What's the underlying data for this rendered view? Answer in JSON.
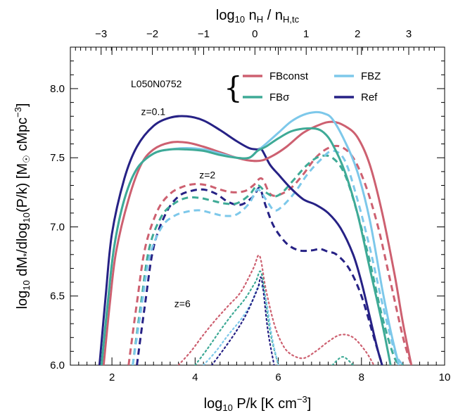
{
  "chart_data": {
    "type": "line",
    "xlabel": "log10 P/k [K cm^-3]",
    "ylabel": "log10 dM*/dlog10(P/k) [M☉ cMpc^-3]",
    "top_xlabel": "log10 nH / nH,tc",
    "xlim": [
      1,
      10
    ],
    "ylim": [
      6.0,
      8.3
    ],
    "top_xlim": [
      -3.6,
      3.7
    ],
    "x_ticks": [
      2,
      4,
      6,
      8,
      10
    ],
    "x_tick_labels": [
      "2",
      "4",
      "6",
      "8",
      "10"
    ],
    "y_ticks": [
      6.0,
      6.5,
      7.0,
      7.5,
      8.0
    ],
    "y_tick_labels": [
      "6.0",
      "6.5",
      "7.0",
      "7.5",
      "8.0"
    ],
    "top_ticks": [
      -3,
      -2,
      -1,
      0,
      1,
      2,
      3
    ],
    "top_tick_labels": [
      "−3",
      "−2",
      "−1",
      "0",
      "1",
      "2",
      "3"
    ],
    "grid": false,
    "annotation_simulation": "L050N0752",
    "annotations": [
      {
        "text": "z=0.1",
        "x": 2.7,
        "y": 7.81
      },
      {
        "text": "z=2",
        "x": 4.1,
        "y": 7.35
      },
      {
        "text": "z=6",
        "x": 3.5,
        "y": 6.42
      }
    ],
    "legend": {
      "placement": "top-right",
      "entries": [
        {
          "name": "FBconst",
          "color": "#CD6070"
        },
        {
          "name": "FBσ",
          "color": "#3EAA96"
        },
        {
          "name": "FBZ",
          "color": "#7DC8EA"
        },
        {
          "name": "Ref",
          "color": "#262185"
        }
      ]
    },
    "series": [
      {
        "name": "Ref",
        "redshift": "z=0.1",
        "color": "#262185",
        "dash": "solid",
        "x": [
          1.7,
          1.85,
          2.0,
          2.3,
          2.6,
          3.0,
          3.4,
          3.8,
          4.2,
          4.6,
          5.0,
          5.3,
          5.5,
          5.6,
          5.8,
          6.0,
          6.3,
          6.6,
          6.9,
          7.2,
          7.5,
          7.8,
          8.0,
          8.2,
          8.4,
          8.6
        ],
        "y": [
          6.0,
          6.5,
          6.95,
          7.35,
          7.58,
          7.73,
          7.79,
          7.8,
          7.77,
          7.7,
          7.62,
          7.57,
          7.56,
          7.56,
          7.45,
          7.38,
          7.28,
          7.2,
          7.16,
          7.1,
          6.99,
          6.8,
          6.6,
          6.35,
          6.1,
          5.9
        ]
      },
      {
        "name": "FBconst",
        "redshift": "z=0.1",
        "color": "#CD6070",
        "dash": "solid",
        "x": [
          1.8,
          1.95,
          2.1,
          2.4,
          2.7,
          3.0,
          3.4,
          3.8,
          4.2,
          4.6,
          5.0,
          5.3,
          5.6,
          5.9,
          6.2,
          6.6,
          7.0,
          7.3,
          7.6,
          7.9,
          8.2,
          8.5,
          8.8,
          9.0,
          9.2
        ],
        "y": [
          6.0,
          6.45,
          6.82,
          7.2,
          7.45,
          7.56,
          7.61,
          7.61,
          7.58,
          7.54,
          7.5,
          7.48,
          7.48,
          7.52,
          7.58,
          7.68,
          7.74,
          7.76,
          7.73,
          7.65,
          7.45,
          7.1,
          6.65,
          6.3,
          6.0
        ]
      },
      {
        "name": "FBZ",
        "redshift": "z=0.1",
        "color": "#7DC8EA",
        "dash": "solid",
        "x": [
          1.75,
          1.9,
          2.05,
          2.3,
          2.6,
          3.0,
          3.4,
          3.8,
          4.2,
          4.6,
          5.0,
          5.3,
          5.5,
          5.7,
          6.0,
          6.3,
          6.6,
          6.9,
          7.1,
          7.3,
          7.6,
          7.9,
          8.2,
          8.5,
          8.7,
          8.9
        ],
        "y": [
          6.0,
          6.45,
          6.85,
          7.2,
          7.42,
          7.53,
          7.56,
          7.57,
          7.56,
          7.53,
          7.5,
          7.5,
          7.55,
          7.6,
          7.68,
          7.76,
          7.81,
          7.83,
          7.82,
          7.78,
          7.62,
          7.4,
          7.05,
          6.55,
          6.25,
          6.0
        ]
      },
      {
        "name": "FBσ",
        "redshift": "z=0.1",
        "color": "#3EAA96",
        "dash": "solid",
        "x": [
          1.75,
          1.9,
          2.05,
          2.3,
          2.6,
          3.0,
          3.4,
          3.8,
          4.2,
          4.6,
          5.0,
          5.3,
          5.5,
          5.7,
          6.0,
          6.3,
          6.6,
          6.9,
          7.1,
          7.3,
          7.6,
          7.9,
          8.2,
          8.5,
          8.7
        ],
        "y": [
          6.0,
          6.45,
          6.85,
          7.2,
          7.42,
          7.53,
          7.56,
          7.56,
          7.55,
          7.52,
          7.5,
          7.5,
          7.55,
          7.58,
          7.64,
          7.69,
          7.71,
          7.71,
          7.68,
          7.6,
          7.4,
          7.1,
          6.7,
          6.3,
          6.0
        ]
      },
      {
        "name": "Ref",
        "redshift": "z=2",
        "color": "#262185",
        "dash": "dashed",
        "x": [
          2.6,
          2.8,
          3.0,
          3.3,
          3.6,
          3.9,
          4.2,
          4.5,
          4.8,
          5.1,
          5.4,
          5.55,
          5.7,
          5.9,
          6.2,
          6.5,
          6.8,
          7.0,
          7.2,
          7.4,
          7.7,
          8.0,
          8.3,
          8.5
        ],
        "y": [
          6.0,
          6.45,
          6.85,
          7.1,
          7.22,
          7.26,
          7.27,
          7.24,
          7.18,
          7.16,
          7.22,
          7.28,
          7.15,
          7.0,
          6.88,
          6.83,
          6.83,
          6.84,
          6.82,
          6.8,
          6.7,
          6.5,
          6.2,
          6.0
        ]
      },
      {
        "name": "FBconst",
        "redshift": "z=2",
        "color": "#CD6070",
        "dash": "dashed",
        "x": [
          2.4,
          2.6,
          2.8,
          3.1,
          3.4,
          3.7,
          4.0,
          4.3,
          4.6,
          4.9,
          5.2,
          5.4,
          5.6,
          5.8,
          6.0,
          6.3,
          6.6,
          6.9,
          7.2,
          7.5,
          7.8,
          8.1,
          8.4,
          8.7,
          9.0,
          9.2
        ],
        "y": [
          6.0,
          6.45,
          6.85,
          7.12,
          7.24,
          7.29,
          7.31,
          7.3,
          7.27,
          7.25,
          7.26,
          7.3,
          7.35,
          7.24,
          7.23,
          7.28,
          7.38,
          7.5,
          7.57,
          7.58,
          7.5,
          7.3,
          7.0,
          6.6,
          6.2,
          6.0
        ]
      },
      {
        "name": "FBσ",
        "redshift": "z=2",
        "color": "#3EAA96",
        "dash": "dashed",
        "x": [
          2.5,
          2.7,
          2.9,
          3.2,
          3.5,
          3.8,
          4.1,
          4.4,
          4.7,
          5.0,
          5.3,
          5.5,
          5.7,
          5.9,
          6.1,
          6.4,
          6.7,
          7.0,
          7.3,
          7.6,
          7.9,
          8.2,
          8.5,
          8.8,
          9.0
        ],
        "y": [
          6.0,
          6.45,
          6.85,
          7.08,
          7.17,
          7.21,
          7.21,
          7.19,
          7.17,
          7.17,
          7.23,
          7.3,
          7.25,
          7.22,
          7.25,
          7.35,
          7.45,
          7.51,
          7.5,
          7.38,
          7.1,
          6.75,
          6.35,
          6.05,
          6.0
        ]
      },
      {
        "name": "FBZ",
        "redshift": "z=2",
        "color": "#7DC8EA",
        "dash": "dashed",
        "x": [
          2.5,
          2.7,
          2.9,
          3.2,
          3.5,
          3.8,
          4.1,
          4.4,
          4.7,
          5.0,
          5.3,
          5.5,
          5.7,
          5.9,
          6.1,
          6.4,
          6.7,
          7.0,
          7.3,
          7.6,
          7.9,
          8.2,
          8.5,
          8.8,
          9.0
        ],
        "y": [
          6.0,
          6.4,
          6.78,
          7.0,
          7.08,
          7.11,
          7.12,
          7.1,
          7.08,
          7.09,
          7.17,
          7.27,
          7.2,
          7.12,
          7.15,
          7.25,
          7.38,
          7.48,
          7.55,
          7.48,
          7.2,
          6.85,
          6.45,
          6.1,
          6.0
        ]
      },
      {
        "name": "FBconst",
        "redshift": "z=6",
        "color": "#CD6070",
        "dash": "dotted",
        "x": [
          3.6,
          3.9,
          4.2,
          4.5,
          4.8,
          5.1,
          5.4,
          5.55,
          5.7,
          5.9,
          6.1,
          6.3,
          6.6,
          6.9,
          7.2,
          7.5,
          7.8,
          8.1,
          8.3
        ],
        "y": [
          6.0,
          6.1,
          6.22,
          6.33,
          6.43,
          6.53,
          6.7,
          6.79,
          6.55,
          6.3,
          6.15,
          6.08,
          6.05,
          6.1,
          6.17,
          6.22,
          6.2,
          6.1,
          6.0
        ]
      },
      {
        "name": "FBσ",
        "redshift": "z=6",
        "color": "#3EAA96",
        "dash": "dotted",
        "x": [
          4.0,
          4.3,
          4.6,
          4.9,
          5.2,
          5.45,
          5.6,
          5.8,
          6.0
        ],
        "y": [
          6.0,
          6.12,
          6.25,
          6.37,
          6.48,
          6.6,
          6.66,
          6.25,
          6.0
        ]
      },
      {
        "name": "FBZ",
        "redshift": "z=6",
        "color": "#7DC8EA",
        "dash": "dotted",
        "x": [
          4.2,
          4.5,
          4.8,
          5.1,
          5.35,
          5.55,
          5.7,
          5.85,
          6.0
        ],
        "y": [
          6.0,
          6.1,
          6.22,
          6.33,
          6.45,
          6.58,
          6.48,
          6.2,
          6.0
        ]
      },
      {
        "name": "Ref",
        "redshift": "z=6",
        "color": "#262185",
        "dash": "dotted",
        "x": [
          4.4,
          4.7,
          5.0,
          5.25,
          5.5,
          5.6,
          5.75,
          5.9
        ],
        "y": [
          6.0,
          6.12,
          6.25,
          6.38,
          6.55,
          6.62,
          6.25,
          6.0
        ]
      },
      {
        "name": "FBσ",
        "redshift": "z=6",
        "color": "#3EAA96",
        "dash": "dotted",
        "x": [
          7.3,
          7.55,
          7.8
        ],
        "y": [
          6.0,
          6.06,
          6.0
        ]
      }
    ]
  }
}
